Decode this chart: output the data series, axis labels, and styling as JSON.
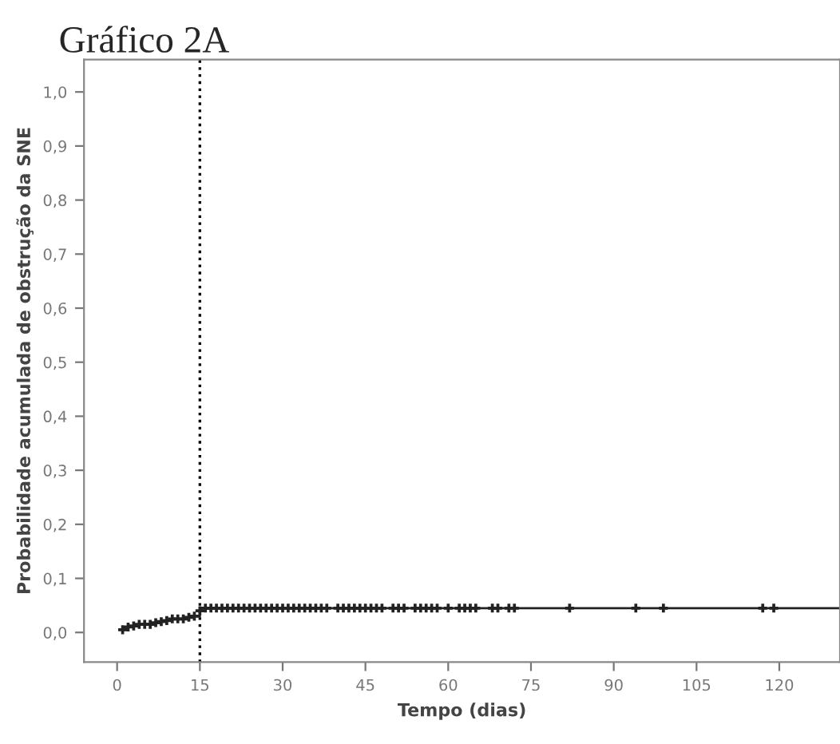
{
  "chart_data": {
    "type": "step",
    "title": "Gráfico 2A",
    "xlabel": "Tempo (dias)",
    "ylabel": "Probabilidade acumulada de obstrução da SNE",
    "xlim": [
      -6,
      131
    ],
    "xticks": [
      0,
      15,
      30,
      45,
      60,
      75,
      90,
      105,
      120
    ],
    "ylim": [
      -0.055,
      1.06
    ],
    "yticks": [
      {
        "value": 0,
        "label": "0,0"
      },
      {
        "value": 0.1,
        "label": "0,1"
      },
      {
        "value": 0.2,
        "label": "0,2"
      },
      {
        "value": 0.3,
        "label": "0,3"
      },
      {
        "value": 0.4,
        "label": "0,4"
      },
      {
        "value": 0.5,
        "label": "0,5"
      },
      {
        "value": 0.6,
        "label": "0,6"
      },
      {
        "value": 0.7,
        "label": "0,7"
      },
      {
        "value": 0.8,
        "label": "0,8"
      },
      {
        "value": 0.9,
        "label": "0,9"
      },
      {
        "value": 1.0,
        "label": "1,0"
      }
    ],
    "grid": false,
    "series": [
      {
        "color": "#222222",
        "marker": "none",
        "x": [
          1,
          2,
          3,
          4,
          7,
          8,
          9,
          10,
          13,
          14,
          15,
          16,
          131
        ],
        "values": [
          0.005,
          0.01,
          0.012,
          0.015,
          0.018,
          0.02,
          0.022,
          0.025,
          0.028,
          0.03,
          0.04,
          0.045,
          0.045
        ]
      },
      {
        "type": "scatter",
        "color": "#222222",
        "marker": "cross",
        "x": [
          1,
          2,
          3,
          4,
          5,
          6,
          7,
          8,
          9,
          10,
          11,
          12,
          13,
          14,
          15,
          16,
          17,
          18,
          19,
          20,
          21,
          22,
          23,
          24,
          25,
          26,
          27,
          28,
          29,
          30,
          31,
          32,
          33,
          34,
          35,
          36,
          37,
          38,
          40,
          41,
          42,
          43,
          44,
          45,
          46,
          47,
          48,
          50,
          51,
          52,
          54,
          55,
          56,
          57,
          58,
          60,
          62,
          63,
          64,
          65,
          68,
          69,
          71,
          72,
          82,
          94,
          99,
          117,
          119
        ],
        "values": [
          0.005,
          0.01,
          0.012,
          0.015,
          0.015,
          0.015,
          0.018,
          0.02,
          0.022,
          0.025,
          0.025,
          0.025,
          0.028,
          0.03,
          0.04,
          0.045,
          0.045,
          0.045,
          0.045,
          0.045,
          0.045,
          0.045,
          0.045,
          0.045,
          0.045,
          0.045,
          0.045,
          0.045,
          0.045,
          0.045,
          0.045,
          0.045,
          0.045,
          0.045,
          0.045,
          0.045,
          0.045,
          0.045,
          0.045,
          0.045,
          0.045,
          0.045,
          0.045,
          0.045,
          0.045,
          0.045,
          0.045,
          0.045,
          0.045,
          0.045,
          0.045,
          0.045,
          0.045,
          0.045,
          0.045,
          0.045,
          0.045,
          0.045,
          0.045,
          0.045,
          0.045,
          0.045,
          0.045,
          0.045,
          0.045,
          0.045,
          0.045,
          0.045,
          0.045
        ]
      }
    ],
    "ref_lines": [
      {
        "axis": "x",
        "value": 15,
        "color": "#000000",
        "line_style": "dotted"
      }
    ]
  }
}
